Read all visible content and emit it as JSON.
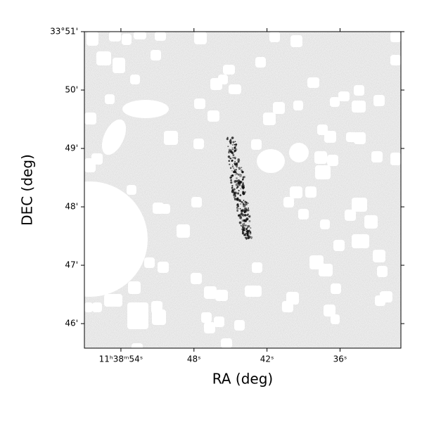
{
  "chart_data": {
    "type": "sky-image",
    "xlabel": "RA (deg)",
    "ylabel": "DEC (deg)",
    "xlim": [
      57.0,
      31.0
    ],
    "ylim": [
      45.58,
      51.0
    ],
    "xticks": [
      {
        "value": 54,
        "label": "11ʰ38ᵐ54ˢ"
      },
      {
        "value": 48,
        "label": "48ˢ"
      },
      {
        "value": 42,
        "label": "42ˢ"
      },
      {
        "value": 36,
        "label": "36ˢ"
      }
    ],
    "yticks": [
      {
        "value": 51,
        "label": "33°51'"
      },
      {
        "value": 50,
        "label": "50'"
      },
      {
        "value": 49,
        "label": "49'"
      },
      {
        "value": 48,
        "label": "48'"
      },
      {
        "value": 47,
        "label": "47'"
      },
      {
        "value": 46,
        "label": "46'"
      }
    ]
  }
}
